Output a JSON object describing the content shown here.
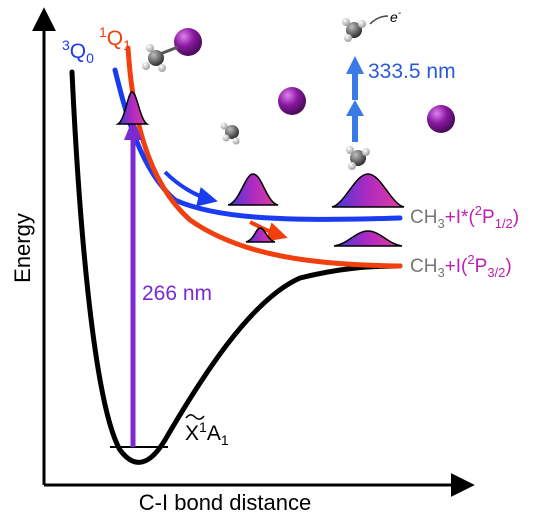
{
  "axes": {
    "y_label": "Energy",
    "x_label": "C-I bond distance"
  },
  "states": {
    "q0": {
      "base": "Q",
      "pre_sup": "3",
      "sub": "0"
    },
    "q1": {
      "base": "Q",
      "pre_sup": "1",
      "sub": "1"
    },
    "ground": {
      "base": "X",
      "sup": "1",
      "mid": "A",
      "sub": "1"
    }
  },
  "excitation": {
    "label": "266 nm"
  },
  "probe": {
    "label": "333.5 nm",
    "electron": "e",
    "electron_sup": "-"
  },
  "channels": {
    "upper": {
      "ch3": "CH",
      "ch3_sub": "3",
      "plus_i": "+I*(",
      "pre_sup": "2",
      "p": "P",
      "p_sub": "1/2",
      "close": ")"
    },
    "lower": {
      "ch3": "CH",
      "ch3_sub": "3",
      "plus_i": "+I(",
      "pre_sup": "2",
      "p": "P",
      "p_sub": "3/2",
      "close": ")"
    }
  },
  "colors": {
    "ground_curve": "#000000",
    "q0_curve": "#1a3cf0",
    "q1_curve": "#f04010",
    "pump_arrow": "#7a2ad0",
    "probe_arrow": "#3a7ae8",
    "iodine": "#7a1a8c",
    "label_gray": "#777777",
    "label_magenta": "#c020b0"
  }
}
